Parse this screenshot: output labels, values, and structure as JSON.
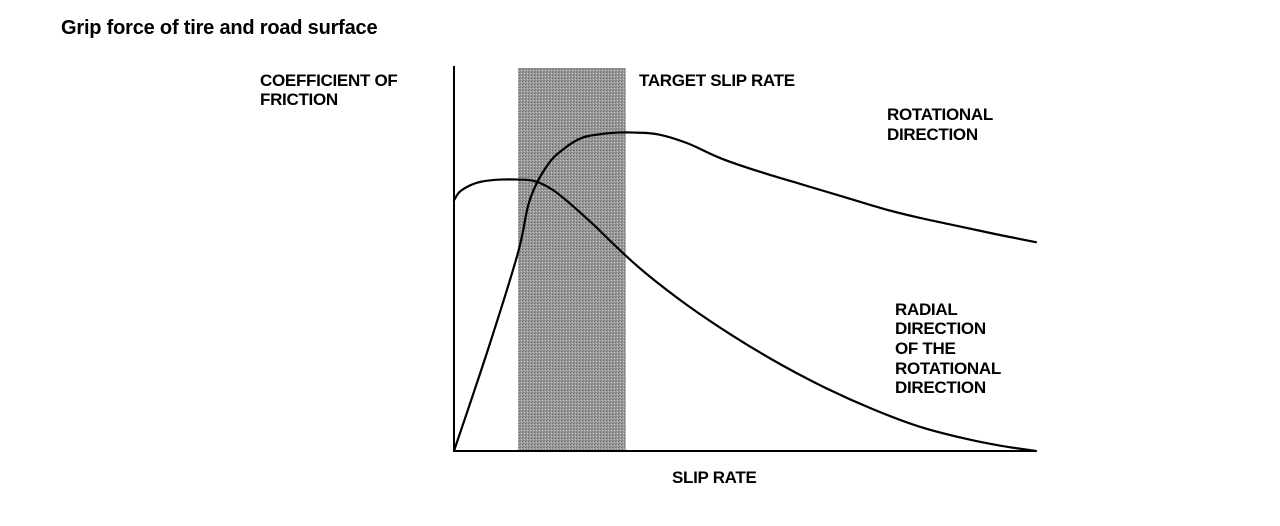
{
  "page": {
    "title": "Grip force of tire and road surface"
  },
  "chart_data": {
    "type": "line",
    "title": "Grip force of tire and road surface",
    "xlabel": "SLIP RATE",
    "ylabel": [
      "COEFFICIENT OF",
      "FRICTION"
    ],
    "xlim": [
      0,
      100
    ],
    "ylim": [
      0,
      100
    ],
    "grid": false,
    "axis_ticks": "none",
    "target_band": {
      "label": "TARGET SLIP RATE",
      "x_range": [
        11,
        29.5
      ],
      "color": "#9a9a9a"
    },
    "series": [
      {
        "name": [
          "ROTATIONAL",
          "DIRECTION"
        ],
        "color": "#000000",
        "x": [
          0,
          6,
          11,
          13,
          16,
          19,
          22,
          25,
          28,
          31,
          35,
          40,
          46,
          53,
          60,
          67,
          74,
          80,
          87,
          94,
          100
        ],
        "y": [
          0,
          30,
          57,
          72,
          82,
          87,
          90,
          91,
          91.5,
          91.5,
          91,
          88.5,
          84,
          80,
          76.5,
          73,
          69.5,
          67,
          64.5,
          62,
          60
        ]
      },
      {
        "name": [
          "RADIAL",
          "DIRECTION",
          "OF THE",
          "ROTATIONAL",
          "DIRECTION"
        ],
        "color": "#000000",
        "x": [
          0,
          1,
          3,
          5,
          8,
          11,
          14,
          17,
          20,
          24,
          28,
          33,
          40,
          48,
          56,
          64,
          72,
          80,
          88,
          94,
          100
        ],
        "y": [
          72,
          74.5,
          76.5,
          77.5,
          78,
          78,
          77.5,
          75,
          71,
          65,
          58.5,
          51,
          42,
          33,
          25,
          18,
          12,
          7,
          3.5,
          1.5,
          0
        ]
      }
    ]
  }
}
